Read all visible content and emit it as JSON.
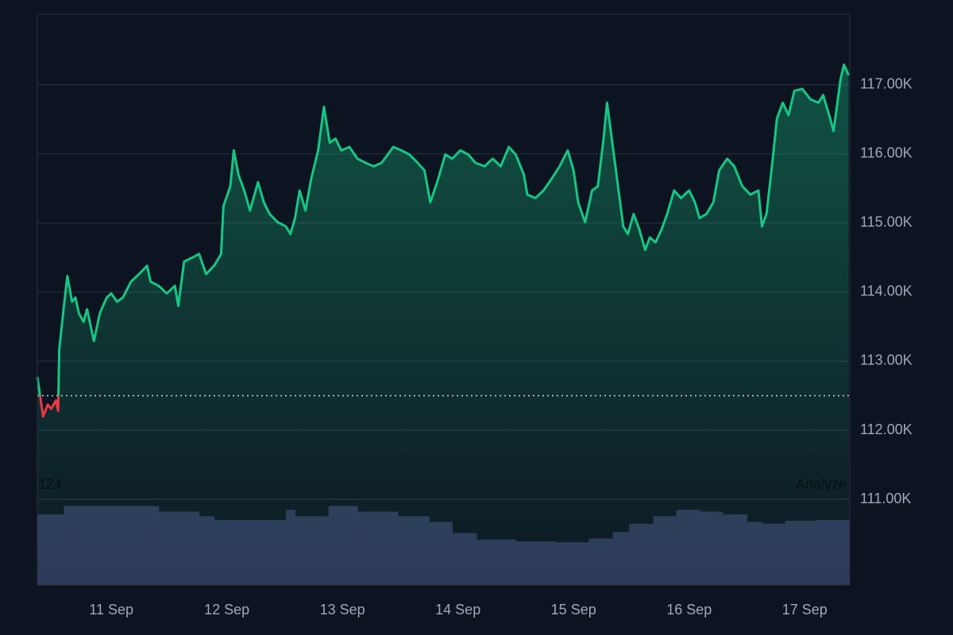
{
  "chart_data": {
    "type": "line",
    "x": [
      10.36,
      10.38,
      10.41,
      10.45,
      10.48,
      10.52,
      10.54,
      10.55,
      10.59,
      10.62,
      10.66,
      10.69,
      10.72,
      10.76,
      10.79,
      10.85,
      10.9,
      10.96,
      11.0,
      11.05,
      11.1,
      11.17,
      11.24,
      11.31,
      11.34,
      11.41,
      11.48,
      11.55,
      11.58,
      11.63,
      11.69,
      11.76,
      11.82,
      11.89,
      11.95,
      11.97,
      12.03,
      12.06,
      12.1,
      12.15,
      12.2,
      12.27,
      12.32,
      12.37,
      12.44,
      12.51,
      12.55,
      12.59,
      12.63,
      12.68,
      12.73,
      12.79,
      12.84,
      12.89,
      12.94,
      12.99,
      13.06,
      13.13,
      13.2,
      13.27,
      13.34,
      13.44,
      13.51,
      13.58,
      13.65,
      13.71,
      13.76,
      13.82,
      13.89,
      13.95,
      14.02,
      14.09,
      14.15,
      14.23,
      14.3,
      14.37,
      14.44,
      14.5,
      14.57,
      14.6,
      14.67,
      14.74,
      14.81,
      14.88,
      14.95,
      15.0,
      15.04,
      15.1,
      15.16,
      15.21,
      15.26,
      15.29,
      15.34,
      15.38,
      15.43,
      15.47,
      15.52,
      15.57,
      15.62,
      15.66,
      15.71,
      15.76,
      15.81,
      15.87,
      15.93,
      16.0,
      16.05,
      16.09,
      16.15,
      16.21,
      16.26,
      16.33,
      16.39,
      16.46,
      16.53,
      16.6,
      16.63,
      16.67,
      16.72,
      16.76,
      16.81,
      16.86,
      16.91,
      16.98,
      17.05,
      17.12,
      17.16,
      17.22,
      17.25,
      17.31,
      17.34,
      17.38
    ],
    "series": [
      {
        "color": "#16c784",
        "below_color": "#ea3943",
        "values": [
          112770,
          112540,
          112200,
          112370,
          112310,
          112430,
          112280,
          113170,
          113800,
          114230,
          113860,
          113920,
          113690,
          113570,
          113750,
          113290,
          113690,
          113920,
          113980,
          113860,
          113920,
          114150,
          114260,
          114380,
          114150,
          114090,
          113980,
          114090,
          113800,
          114440,
          114490,
          114550,
          114260,
          114380,
          114550,
          115240,
          115530,
          116050,
          115700,
          115470,
          115180,
          115590,
          115300,
          115130,
          115010,
          114950,
          114840,
          115070,
          115470,
          115180,
          115640,
          116050,
          116680,
          116160,
          116220,
          116050,
          116100,
          115930,
          115870,
          115820,
          115870,
          116100,
          116050,
          115990,
          115870,
          115760,
          115300,
          115590,
          115990,
          115930,
          116050,
          115990,
          115870,
          115820,
          115930,
          115820,
          116100,
          115990,
          115700,
          115410,
          115360,
          115470,
          115640,
          115820,
          116050,
          115760,
          115300,
          115010,
          115470,
          115530,
          116220,
          116740,
          116100,
          115590,
          114950,
          114840,
          115130,
          114900,
          114610,
          114790,
          114720,
          114900,
          115130,
          115470,
          115360,
          115470,
          115300,
          115070,
          115130,
          115300,
          115760,
          115930,
          115820,
          115530,
          115410,
          115470,
          114950,
          115130,
          115870,
          116510,
          116740,
          116560,
          116910,
          116940,
          116790,
          116740,
          116850,
          116510,
          116330,
          117080,
          117290,
          117140
        ]
      }
    ],
    "baseline": 112500,
    "xlim": [
      10.36,
      17.39
    ],
    "xticks": [
      {
        "value": 11,
        "label": "11 Sep"
      },
      {
        "value": 12,
        "label": "12 Sep"
      },
      {
        "value": 13,
        "label": "13 Sep"
      },
      {
        "value": 14,
        "label": "14 Sep"
      },
      {
        "value": 15,
        "label": "15 Sep"
      },
      {
        "value": 16,
        "label": "16 Sep"
      },
      {
        "value": 17,
        "label": "17 Sep"
      }
    ],
    "ylim": [
      109760,
      118020
    ],
    "yticks": [
      {
        "value": 111000,
        "label": "111.00K"
      },
      {
        "value": 112000,
        "label": "112.00K"
      },
      {
        "value": 113000,
        "label": "113.00K"
      },
      {
        "value": 114000,
        "label": "114.00K"
      },
      {
        "value": 115000,
        "label": "115.00K"
      },
      {
        "value": 116000,
        "label": "116.00K"
      },
      {
        "value": 117000,
        "label": "117.00K"
      }
    ],
    "grid": true,
    "volume": {
      "color": "#2e3758",
      "x": [
        10.36,
        10.55,
        10.59,
        11.05,
        11.41,
        11.76,
        11.89,
        12.51,
        12.59,
        12.88,
        13.13,
        13.48,
        13.75,
        13.95,
        14.16,
        14.5,
        14.85,
        15.13,
        15.34,
        15.48,
        15.69,
        15.89,
        16.09,
        16.29,
        16.5,
        16.63,
        16.83,
        17.1
      ],
      "values": [
        76,
        76,
        85,
        85,
        79,
        74,
        70,
        81,
        74,
        85,
        79,
        74,
        68,
        56,
        49,
        47,
        46,
        50,
        57,
        66,
        74,
        81,
        79,
        76,
        68,
        66,
        69,
        70
      ],
      "ylim": [
        0,
        100
      ]
    },
    "volume_label": "124",
    "action": "Analyze"
  }
}
